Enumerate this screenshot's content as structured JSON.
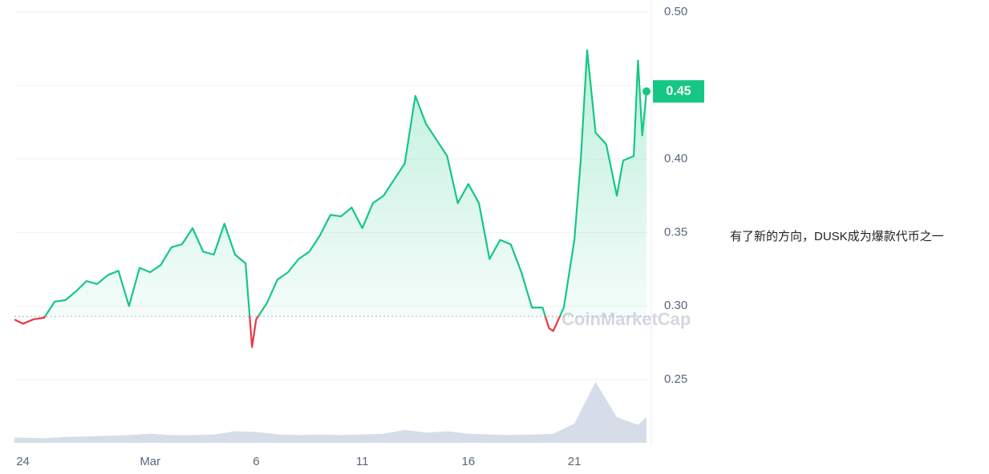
{
  "chart_data": {
    "type": "line",
    "price": {
      "color": "#16c784",
      "down_color": "#ea3943",
      "x": [
        -0.4,
        0,
        0.5,
        1,
        1.5,
        2,
        2.5,
        3,
        3.5,
        4,
        4.5,
        5,
        5.5,
        6,
        6.5,
        7,
        7.5,
        8,
        8.5,
        9,
        9.5,
        10,
        10.5,
        10.8,
        11,
        11.5,
        12,
        12.5,
        13,
        13.5,
        14,
        14.5,
        15,
        15.5,
        16,
        16.5,
        17,
        17.5,
        18,
        18.5,
        19,
        19.5,
        20,
        20.5,
        21,
        21.5,
        22,
        22.5,
        23,
        23.5,
        24,
        24.5,
        24.8,
        25,
        25.5,
        26,
        26.3,
        26.6,
        27,
        27.5,
        28,
        28.3,
        28.8,
        29,
        29.2,
        29.4
      ],
      "values": [
        0.2908,
        0.288,
        0.291,
        0.292,
        0.303,
        0.304,
        0.31,
        0.317,
        0.315,
        0.321,
        0.324,
        0.3,
        0.326,
        0.323,
        0.328,
        0.34,
        0.342,
        0.353,
        0.337,
        0.335,
        0.356,
        0.335,
        0.329,
        0.272,
        0.291,
        0.302,
        0.318,
        0.323,
        0.332,
        0.337,
        0.348,
        0.362,
        0.361,
        0.367,
        0.353,
        0.37,
        0.375,
        0.386,
        0.397,
        0.443,
        0.424,
        0.413,
        0.402,
        0.37,
        0.383,
        0.37,
        0.332,
        0.345,
        0.342,
        0.323,
        0.299,
        0.299,
        0.285,
        0.283,
        0.299,
        0.345,
        0.399,
        0.474,
        0.418,
        0.41,
        0.375,
        0.399,
        0.402,
        0.467,
        0.416,
        0.446
      ]
    },
    "baseline": 0.293,
    "current_label": "0.45",
    "volume": {
      "color": "#cfd6e4",
      "x": [
        -0.4,
        0,
        1,
        2,
        3,
        4,
        5,
        6,
        7,
        8,
        9,
        10,
        11,
        12,
        13,
        14,
        15,
        16,
        17,
        18,
        19,
        20,
        21,
        22,
        23,
        24,
        25,
        26,
        27,
        28,
        29,
        29.4
      ],
      "values": [
        8,
        8,
        7,
        9,
        10,
        11,
        12,
        14,
        12,
        12,
        13,
        18,
        17,
        13,
        12,
        13,
        12,
        13,
        14,
        20,
        16,
        18,
        14,
        13,
        12,
        13,
        14,
        30,
        95,
        40,
        28,
        40
      ]
    },
    "xlim": [
      -0.4,
      29.4
    ],
    "xticks": [
      {
        "value": 0,
        "label": "24"
      },
      {
        "value": 6,
        "label": "Mar"
      },
      {
        "value": 11,
        "label": "6"
      },
      {
        "value": 16,
        "label": "11"
      },
      {
        "value": 21,
        "label": "16"
      },
      {
        "value": 26,
        "label": "21"
      }
    ],
    "ylim": [
      0.207,
      0.5
    ],
    "yticks": [
      {
        "value": 0.5,
        "label": "0.50"
      },
      0.45,
      {
        "value": 0.4,
        "label": "0.40"
      },
      0.35,
      {
        "value": 0.3,
        "label": "0.30"
      },
      0.25
    ],
    "grid": true,
    "watermark": "CoinMarketCap",
    "caption": "有了新的方向，DUSK成为爆款代币之一"
  }
}
